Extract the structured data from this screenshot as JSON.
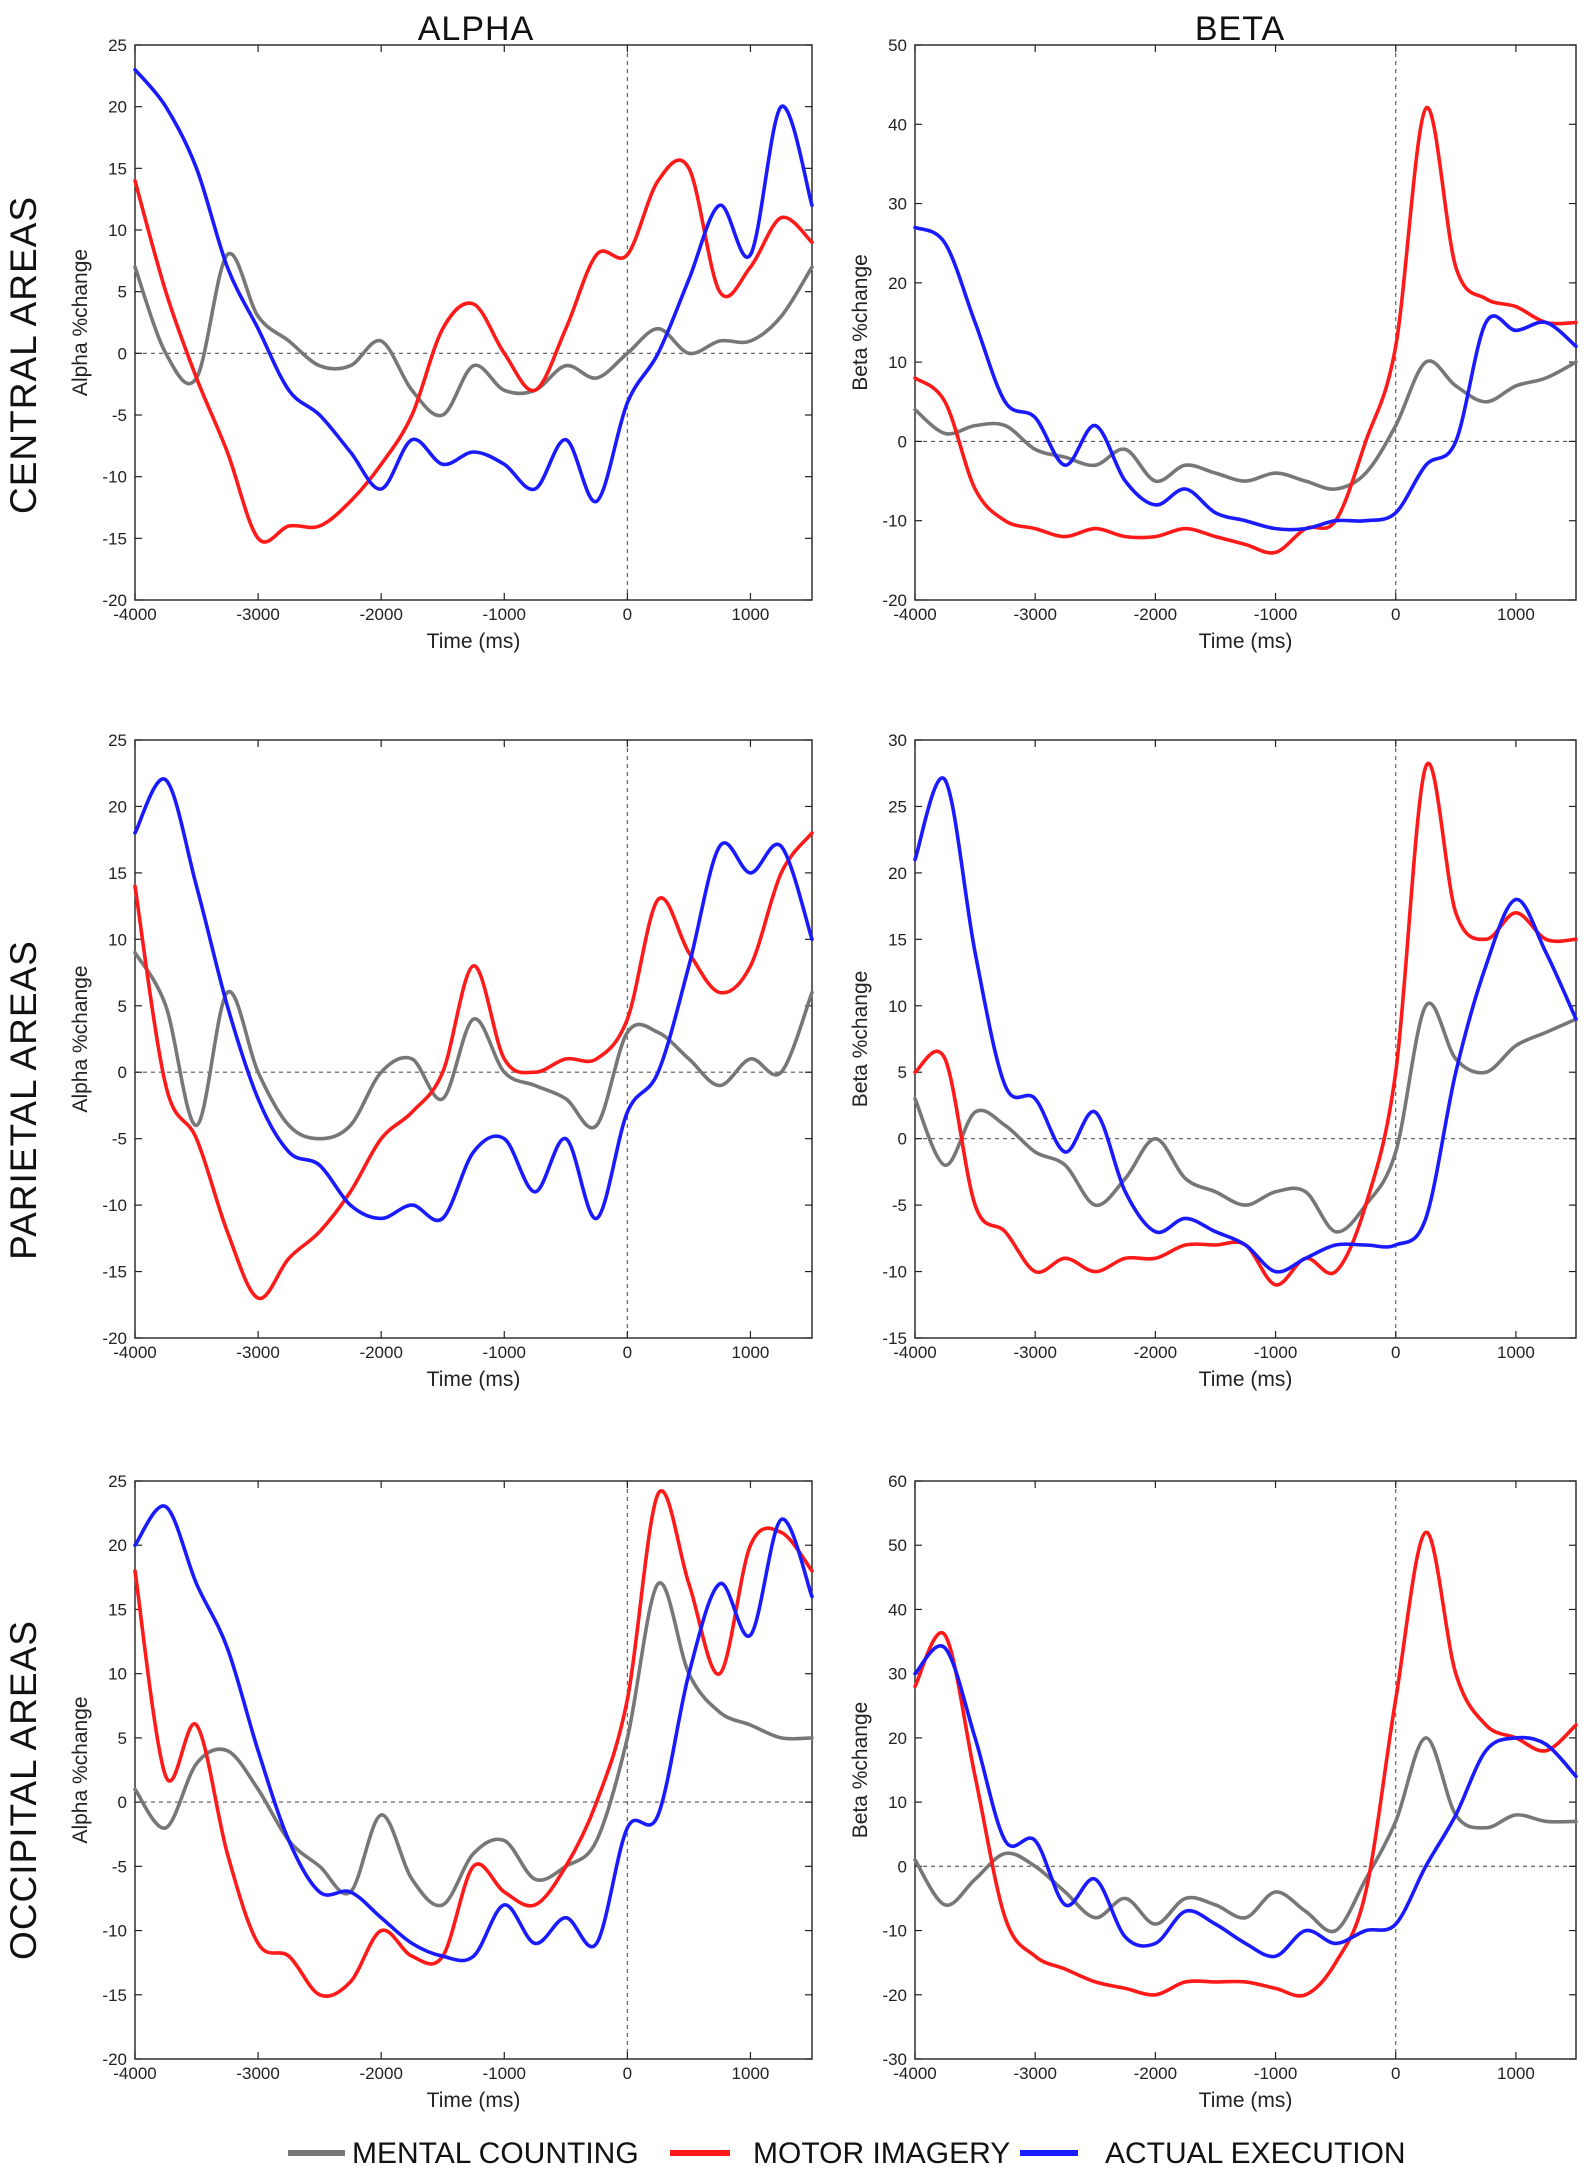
{
  "column_titles": [
    "ALPHA",
    "BETA"
  ],
  "row_titles": [
    "CENTRAL AREAS",
    "PARIETAL AREAS",
    "OCCIPITAL AREAS"
  ],
  "legend": [
    {
      "label": "MENTAL COUNTING",
      "color": "#777777"
    },
    {
      "label": "MOTOR IMAGERY",
      "color": "#ff1a1a"
    },
    {
      "label": "ACTUAL EXECUTION",
      "color": "#1a1aff"
    }
  ],
  "chart_data": [
    {
      "type": "line",
      "title": "ALPHA",
      "row": "CENTRAL AREAS",
      "xlabel": "Time (ms)",
      "ylabel": "Alpha %change",
      "xlim": [
        -4000,
        1500
      ],
      "ylim": [
        -20,
        25
      ],
      "xticks": [
        -4000,
        -3000,
        -2000,
        -1000,
        0,
        1000
      ],
      "yticks": [
        -20,
        -15,
        -10,
        -5,
        0,
        5,
        10,
        15,
        20,
        25
      ],
      "x": [
        -4000,
        -3750,
        -3500,
        -3250,
        -3000,
        -2750,
        -2500,
        -2250,
        -2000,
        -1750,
        -1500,
        -1250,
        -1000,
        -750,
        -500,
        -250,
        0,
        250,
        500,
        750,
        1000,
        1250,
        1500
      ],
      "series": [
        {
          "name": "MENTAL COUNTING",
          "color": "#777777",
          "values": [
            7,
            0,
            -2,
            8,
            3,
            1,
            -1,
            -1,
            1,
            -3,
            -5,
            -1,
            -3,
            -3,
            -1,
            -2,
            0,
            2,
            0,
            1,
            1,
            3,
            7
          ]
        },
        {
          "name": "MOTOR IMAGERY",
          "color": "#ff1a1a",
          "values": [
            14,
            5,
            -2,
            -8,
            -15,
            -14,
            -14,
            -12,
            -9,
            -5,
            2,
            4,
            0,
            -3,
            2,
            8,
            8,
            14,
            15,
            5,
            7,
            11,
            9
          ]
        },
        {
          "name": "ACTUAL EXECUTION",
          "color": "#1a1aff",
          "values": [
            23,
            20,
            15,
            7,
            2,
            -3,
            -5,
            -8,
            -11,
            -7,
            -9,
            -8,
            -9,
            -11,
            -7,
            -12,
            -4,
            0,
            6,
            12,
            8,
            20,
            12
          ]
        }
      ]
    },
    {
      "type": "line",
      "title": "BETA",
      "row": "CENTRAL AREAS",
      "xlabel": "Time (ms)",
      "ylabel": "Beta %change",
      "xlim": [
        -4000,
        1500
      ],
      "ylim": [
        -20,
        50
      ],
      "xticks": [
        -4000,
        -3000,
        -2000,
        -1000,
        0,
        1000
      ],
      "yticks": [
        -20,
        -10,
        0,
        10,
        20,
        30,
        40,
        50
      ],
      "x": [
        -4000,
        -3750,
        -3500,
        -3250,
        -3000,
        -2750,
        -2500,
        -2250,
        -2000,
        -1750,
        -1500,
        -1250,
        -1000,
        -750,
        -500,
        -250,
        0,
        250,
        500,
        750,
        1000,
        1250,
        1500
      ],
      "series": [
        {
          "name": "MENTAL COUNTING",
          "color": "#777777",
          "values": [
            4,
            1,
            2,
            2,
            -1,
            -2,
            -3,
            -1,
            -5,
            -3,
            -4,
            -5,
            -4,
            -5,
            -6,
            -4,
            2,
            10,
            7,
            5,
            7,
            8,
            10
          ]
        },
        {
          "name": "MOTOR IMAGERY",
          "color": "#ff1a1a",
          "values": [
            8,
            5,
            -6,
            -10,
            -11,
            -12,
            -11,
            -12,
            -12,
            -11,
            -12,
            -13,
            -14,
            -11,
            -10,
            0,
            12,
            42,
            22,
            18,
            17,
            15,
            15
          ]
        },
        {
          "name": "ACTUAL EXECUTION",
          "color": "#1a1aff",
          "values": [
            27,
            25,
            15,
            5,
            3,
            -3,
            2,
            -5,
            -8,
            -6,
            -9,
            -10,
            -11,
            -11,
            -10,
            -10,
            -9,
            -3,
            0,
            15,
            14,
            15,
            12
          ]
        }
      ]
    },
    {
      "type": "line",
      "title": "ALPHA",
      "row": "PARIETAL AREAS",
      "xlabel": "Time (ms)",
      "ylabel": "Alpha %change",
      "xlim": [
        -4000,
        1500
      ],
      "ylim": [
        -20,
        25
      ],
      "xticks": [
        -4000,
        -3000,
        -2000,
        -1000,
        0,
        1000
      ],
      "yticks": [
        -20,
        -15,
        -10,
        -5,
        0,
        5,
        10,
        15,
        20,
        25
      ],
      "x": [
        -4000,
        -3750,
        -3500,
        -3250,
        -3000,
        -2750,
        -2500,
        -2250,
        -2000,
        -1750,
        -1500,
        -1250,
        -1000,
        -750,
        -500,
        -250,
        0,
        250,
        500,
        750,
        1000,
        1250,
        1500
      ],
      "series": [
        {
          "name": "MENTAL COUNTING",
          "color": "#777777",
          "values": [
            9,
            5,
            -4,
            6,
            0,
            -4,
            -5,
            -4,
            0,
            1,
            -2,
            4,
            0,
            -1,
            -2,
            -4,
            3,
            3,
            1,
            -1,
            1,
            0,
            6
          ]
        },
        {
          "name": "MOTOR IMAGERY",
          "color": "#ff1a1a",
          "values": [
            14,
            -1,
            -5,
            -12,
            -17,
            -14,
            -12,
            -9,
            -5,
            -3,
            0,
            8,
            1,
            0,
            1,
            1,
            4,
            13,
            9,
            6,
            8,
            15,
            18
          ]
        },
        {
          "name": "ACTUAL EXECUTION",
          "color": "#1a1aff",
          "values": [
            18,
            22,
            14,
            5,
            -2,
            -6,
            -7,
            -10,
            -11,
            -10,
            -11,
            -6,
            -5,
            -9,
            -5,
            -11,
            -3,
            0,
            8,
            17,
            15,
            17,
            10
          ]
        }
      ]
    },
    {
      "type": "line",
      "title": "BETA",
      "row": "PARIETAL AREAS",
      "xlabel": "Time (ms)",
      "ylabel": "Beta %change",
      "xlim": [
        -4000,
        1500
      ],
      "ylim": [
        -15,
        30
      ],
      "xticks": [
        -4000,
        -3000,
        -2000,
        -1000,
        0,
        1000
      ],
      "yticks": [
        -15,
        -10,
        -5,
        0,
        5,
        10,
        15,
        20,
        25,
        30
      ],
      "x": [
        -4000,
        -3750,
        -3500,
        -3250,
        -3000,
        -2750,
        -2500,
        -2250,
        -2000,
        -1750,
        -1500,
        -1250,
        -1000,
        -750,
        -500,
        -250,
        0,
        250,
        500,
        750,
        1000,
        1250,
        1500
      ],
      "series": [
        {
          "name": "MENTAL COUNTING",
          "color": "#777777",
          "values": [
            3,
            -2,
            2,
            1,
            -1,
            -2,
            -5,
            -3,
            0,
            -3,
            -4,
            -5,
            -4,
            -4,
            -7,
            -5,
            -1,
            10,
            6,
            5,
            7,
            8,
            9
          ]
        },
        {
          "name": "MOTOR IMAGERY",
          "color": "#ff1a1a",
          "values": [
            5,
            6,
            -5,
            -7,
            -10,
            -9,
            -10,
            -9,
            -9,
            -8,
            -8,
            -8,
            -11,
            -9,
            -10,
            -5,
            5,
            28,
            17,
            15,
            17,
            15,
            15
          ]
        },
        {
          "name": "ACTUAL EXECUTION",
          "color": "#1a1aff",
          "values": [
            21,
            27,
            14,
            4,
            3,
            -1,
            2,
            -4,
            -7,
            -6,
            -7,
            -8,
            -10,
            -9,
            -8,
            -8,
            -8,
            -6,
            5,
            13,
            18,
            14,
            9
          ]
        }
      ]
    },
    {
      "type": "line",
      "title": "ALPHA",
      "row": "OCCIPITAL AREAS",
      "xlabel": "Time (ms)",
      "ylabel": "Alpha %change",
      "xlim": [
        -4000,
        1500
      ],
      "ylim": [
        -20,
        25
      ],
      "xticks": [
        -4000,
        -3000,
        -2000,
        -1000,
        0,
        1000
      ],
      "yticks": [
        -20,
        -15,
        -10,
        -5,
        0,
        5,
        10,
        15,
        20,
        25
      ],
      "x": [
        -4000,
        -3750,
        -3500,
        -3250,
        -3000,
        -2750,
        -2500,
        -2250,
        -2000,
        -1750,
        -1500,
        -1250,
        -1000,
        -750,
        -500,
        -250,
        0,
        250,
        500,
        750,
        1000,
        1250,
        1500
      ],
      "series": [
        {
          "name": "MENTAL COUNTING",
          "color": "#777777",
          "values": [
            1,
            -2,
            3,
            4,
            1,
            -3,
            -5,
            -7,
            -1,
            -6,
            -8,
            -4,
            -3,
            -6,
            -5,
            -3,
            5,
            17,
            10,
            7,
            6,
            5,
            5
          ]
        },
        {
          "name": "MOTOR IMAGERY",
          "color": "#ff1a1a",
          "values": [
            18,
            2,
            6,
            -4,
            -11,
            -12,
            -15,
            -14,
            -10,
            -12,
            -12,
            -5,
            -7,
            -8,
            -5,
            0,
            8,
            24,
            17,
            10,
            20,
            21,
            18
          ]
        },
        {
          "name": "ACTUAL EXECUTION",
          "color": "#1a1aff",
          "values": [
            20,
            23,
            17,
            12,
            4,
            -3,
            -7,
            -7,
            -9,
            -11,
            -12,
            -12,
            -8,
            -11,
            -9,
            -11,
            -2,
            -1,
            10,
            17,
            13,
            22,
            16
          ]
        }
      ]
    },
    {
      "type": "line",
      "title": "BETA",
      "row": "OCCIPITAL AREAS",
      "xlabel": "Time (ms)",
      "ylabel": "Beta %change",
      "xlim": [
        -4000,
        1500
      ],
      "ylim": [
        -30,
        60
      ],
      "xticks": [
        -4000,
        -3000,
        -2000,
        -1000,
        0,
        1000
      ],
      "yticks": [
        -30,
        -20,
        -10,
        0,
        10,
        20,
        30,
        40,
        50,
        60
      ],
      "x": [
        -4000,
        -3750,
        -3500,
        -3250,
        -3000,
        -2750,
        -2500,
        -2250,
        -2000,
        -1750,
        -1500,
        -1250,
        -1000,
        -750,
        -500,
        -250,
        0,
        250,
        500,
        750,
        1000,
        1250,
        1500
      ],
      "series": [
        {
          "name": "MENTAL COUNTING",
          "color": "#777777",
          "values": [
            1,
            -6,
            -2,
            2,
            0,
            -4,
            -8,
            -5,
            -9,
            -5,
            -6,
            -8,
            -4,
            -7,
            -10,
            -2,
            7,
            20,
            8,
            6,
            8,
            7,
            7
          ]
        },
        {
          "name": "MOTOR IMAGERY",
          "color": "#ff1a1a",
          "values": [
            28,
            36,
            14,
            -8,
            -14,
            -16,
            -18,
            -19,
            -20,
            -18,
            -18,
            -18,
            -19,
            -20,
            -15,
            -4,
            26,
            52,
            30,
            22,
            20,
            18,
            22
          ]
        },
        {
          "name": "ACTUAL EXECUTION",
          "color": "#1a1aff",
          "values": [
            30,
            34,
            20,
            4,
            4,
            -6,
            -2,
            -11,
            -12,
            -7,
            -9,
            -12,
            -14,
            -10,
            -12,
            -10,
            -9,
            0,
            8,
            18,
            20,
            19,
            14
          ]
        }
      ]
    }
  ]
}
